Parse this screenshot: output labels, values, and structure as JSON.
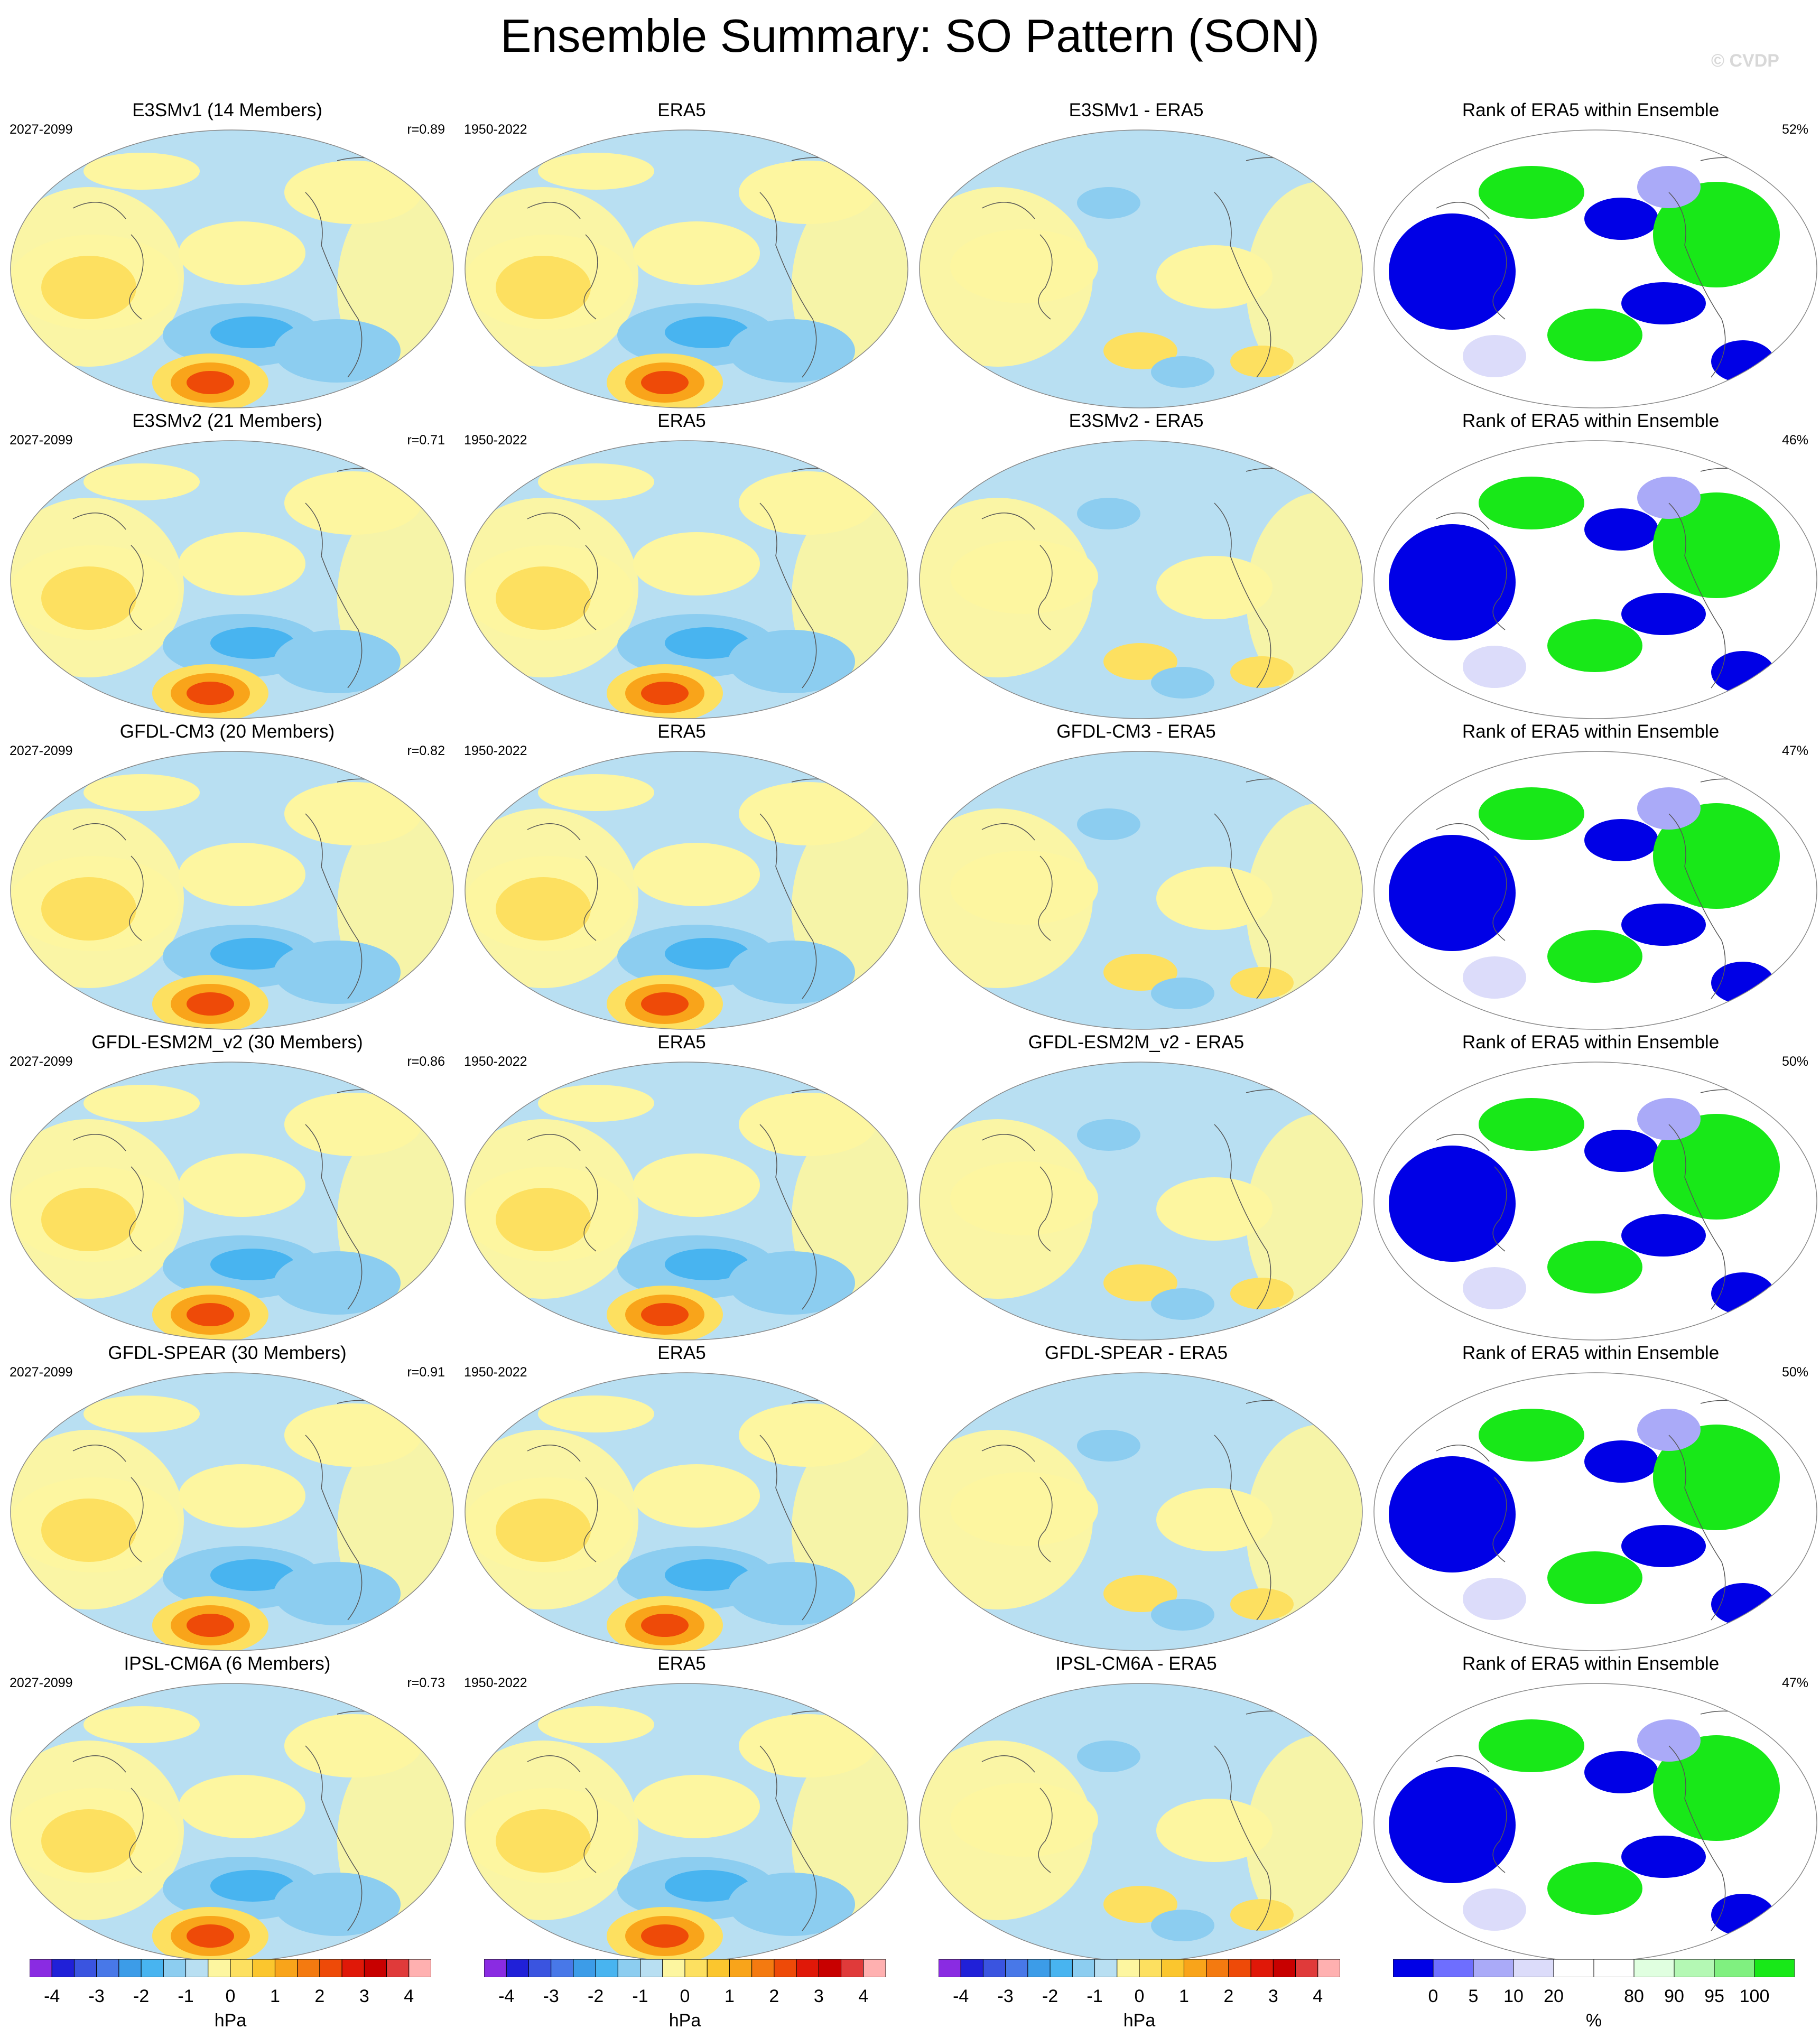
{
  "title": "Ensemble Summary: SO Pattern (SON)",
  "copyright": "© CVDP",
  "rows": [
    {
      "model": {
        "title": "E3SMv1 (14 Members)",
        "period": "2027-2099",
        "stat": "r=0.89"
      },
      "obs": {
        "title": "ERA5",
        "period": "1950-2022"
      },
      "diff": {
        "title": "E3SMv1 - ERA5"
      },
      "rank": {
        "title": "Rank of ERA5 within Ensemble",
        "stat": "52%"
      }
    },
    {
      "model": {
        "title": "E3SMv2 (21 Members)",
        "period": "2027-2099",
        "stat": "r=0.71"
      },
      "obs": {
        "title": "ERA5",
        "period": "1950-2022"
      },
      "diff": {
        "title": "E3SMv2 - ERA5"
      },
      "rank": {
        "title": "Rank of ERA5 within Ensemble",
        "stat": "46%"
      }
    },
    {
      "model": {
        "title": "GFDL-CM3 (20 Members)",
        "period": "2027-2099",
        "stat": "r=0.82"
      },
      "obs": {
        "title": "ERA5",
        "period": "1950-2022"
      },
      "diff": {
        "title": "GFDL-CM3 - ERA5"
      },
      "rank": {
        "title": "Rank of ERA5 within Ensemble",
        "stat": "47%"
      }
    },
    {
      "model": {
        "title": "GFDL-ESM2M_v2 (30 Members)",
        "period": "2027-2099",
        "stat": "r=0.86"
      },
      "obs": {
        "title": "ERA5",
        "period": "1950-2022"
      },
      "diff": {
        "title": "GFDL-ESM2M_v2 - ERA5"
      },
      "rank": {
        "title": "Rank of ERA5 within Ensemble",
        "stat": "50%"
      }
    },
    {
      "model": {
        "title": "GFDL-SPEAR (30 Members)",
        "period": "2027-2099",
        "stat": "r=0.91"
      },
      "obs": {
        "title": "ERA5",
        "period": "1950-2022"
      },
      "diff": {
        "title": "GFDL-SPEAR - ERA5"
      },
      "rank": {
        "title": "Rank of ERA5 within Ensemble",
        "stat": "50%"
      }
    },
    {
      "model": {
        "title": "IPSL-CM6A (6 Members)",
        "period": "2027-2099",
        "stat": "r=0.73"
      },
      "obs": {
        "title": "ERA5",
        "period": "1950-2022"
      },
      "diff": {
        "title": "IPSL-CM6A - ERA5"
      },
      "rank": {
        "title": "Rank of ERA5 within Ensemble",
        "stat": "47%"
      }
    }
  ],
  "colorbars": {
    "pressure": {
      "units": "hPa",
      "tick_labels": [
        "-4",
        "-3",
        "-2",
        "-1",
        "0",
        "1",
        "2",
        "3",
        "4"
      ],
      "colors": [
        "#8a2be2",
        "#2020d8",
        "#3a54e0",
        "#4878e8",
        "#3c9ce8",
        "#48b4f0",
        "#8ccdf0",
        "#b8dff2",
        "#fdf6a0",
        "#fde060",
        "#fbc62e",
        "#f9a41a",
        "#f47a10",
        "#ee4a08",
        "#e01808",
        "#c80000",
        "#e03a3a",
        "#ffb0b0"
      ]
    },
    "rank": {
      "units": "%",
      "tick_labels": [
        "0",
        "5",
        "10",
        "20",
        "80",
        "90",
        "95",
        "100"
      ],
      "colors": [
        "#0000e6",
        "#6e6eff",
        "#aaaaf8",
        "#dcdcfa",
        "#ffffff",
        "#ffffff",
        "#e0ffe0",
        "#b4f8b4",
        "#80f080",
        "#18e818"
      ]
    }
  },
  "map_colors": {
    "land_outline": "#555555",
    "neutral_positive": "#fdf6a0",
    "neutral_negative": "#b8dff2"
  }
}
